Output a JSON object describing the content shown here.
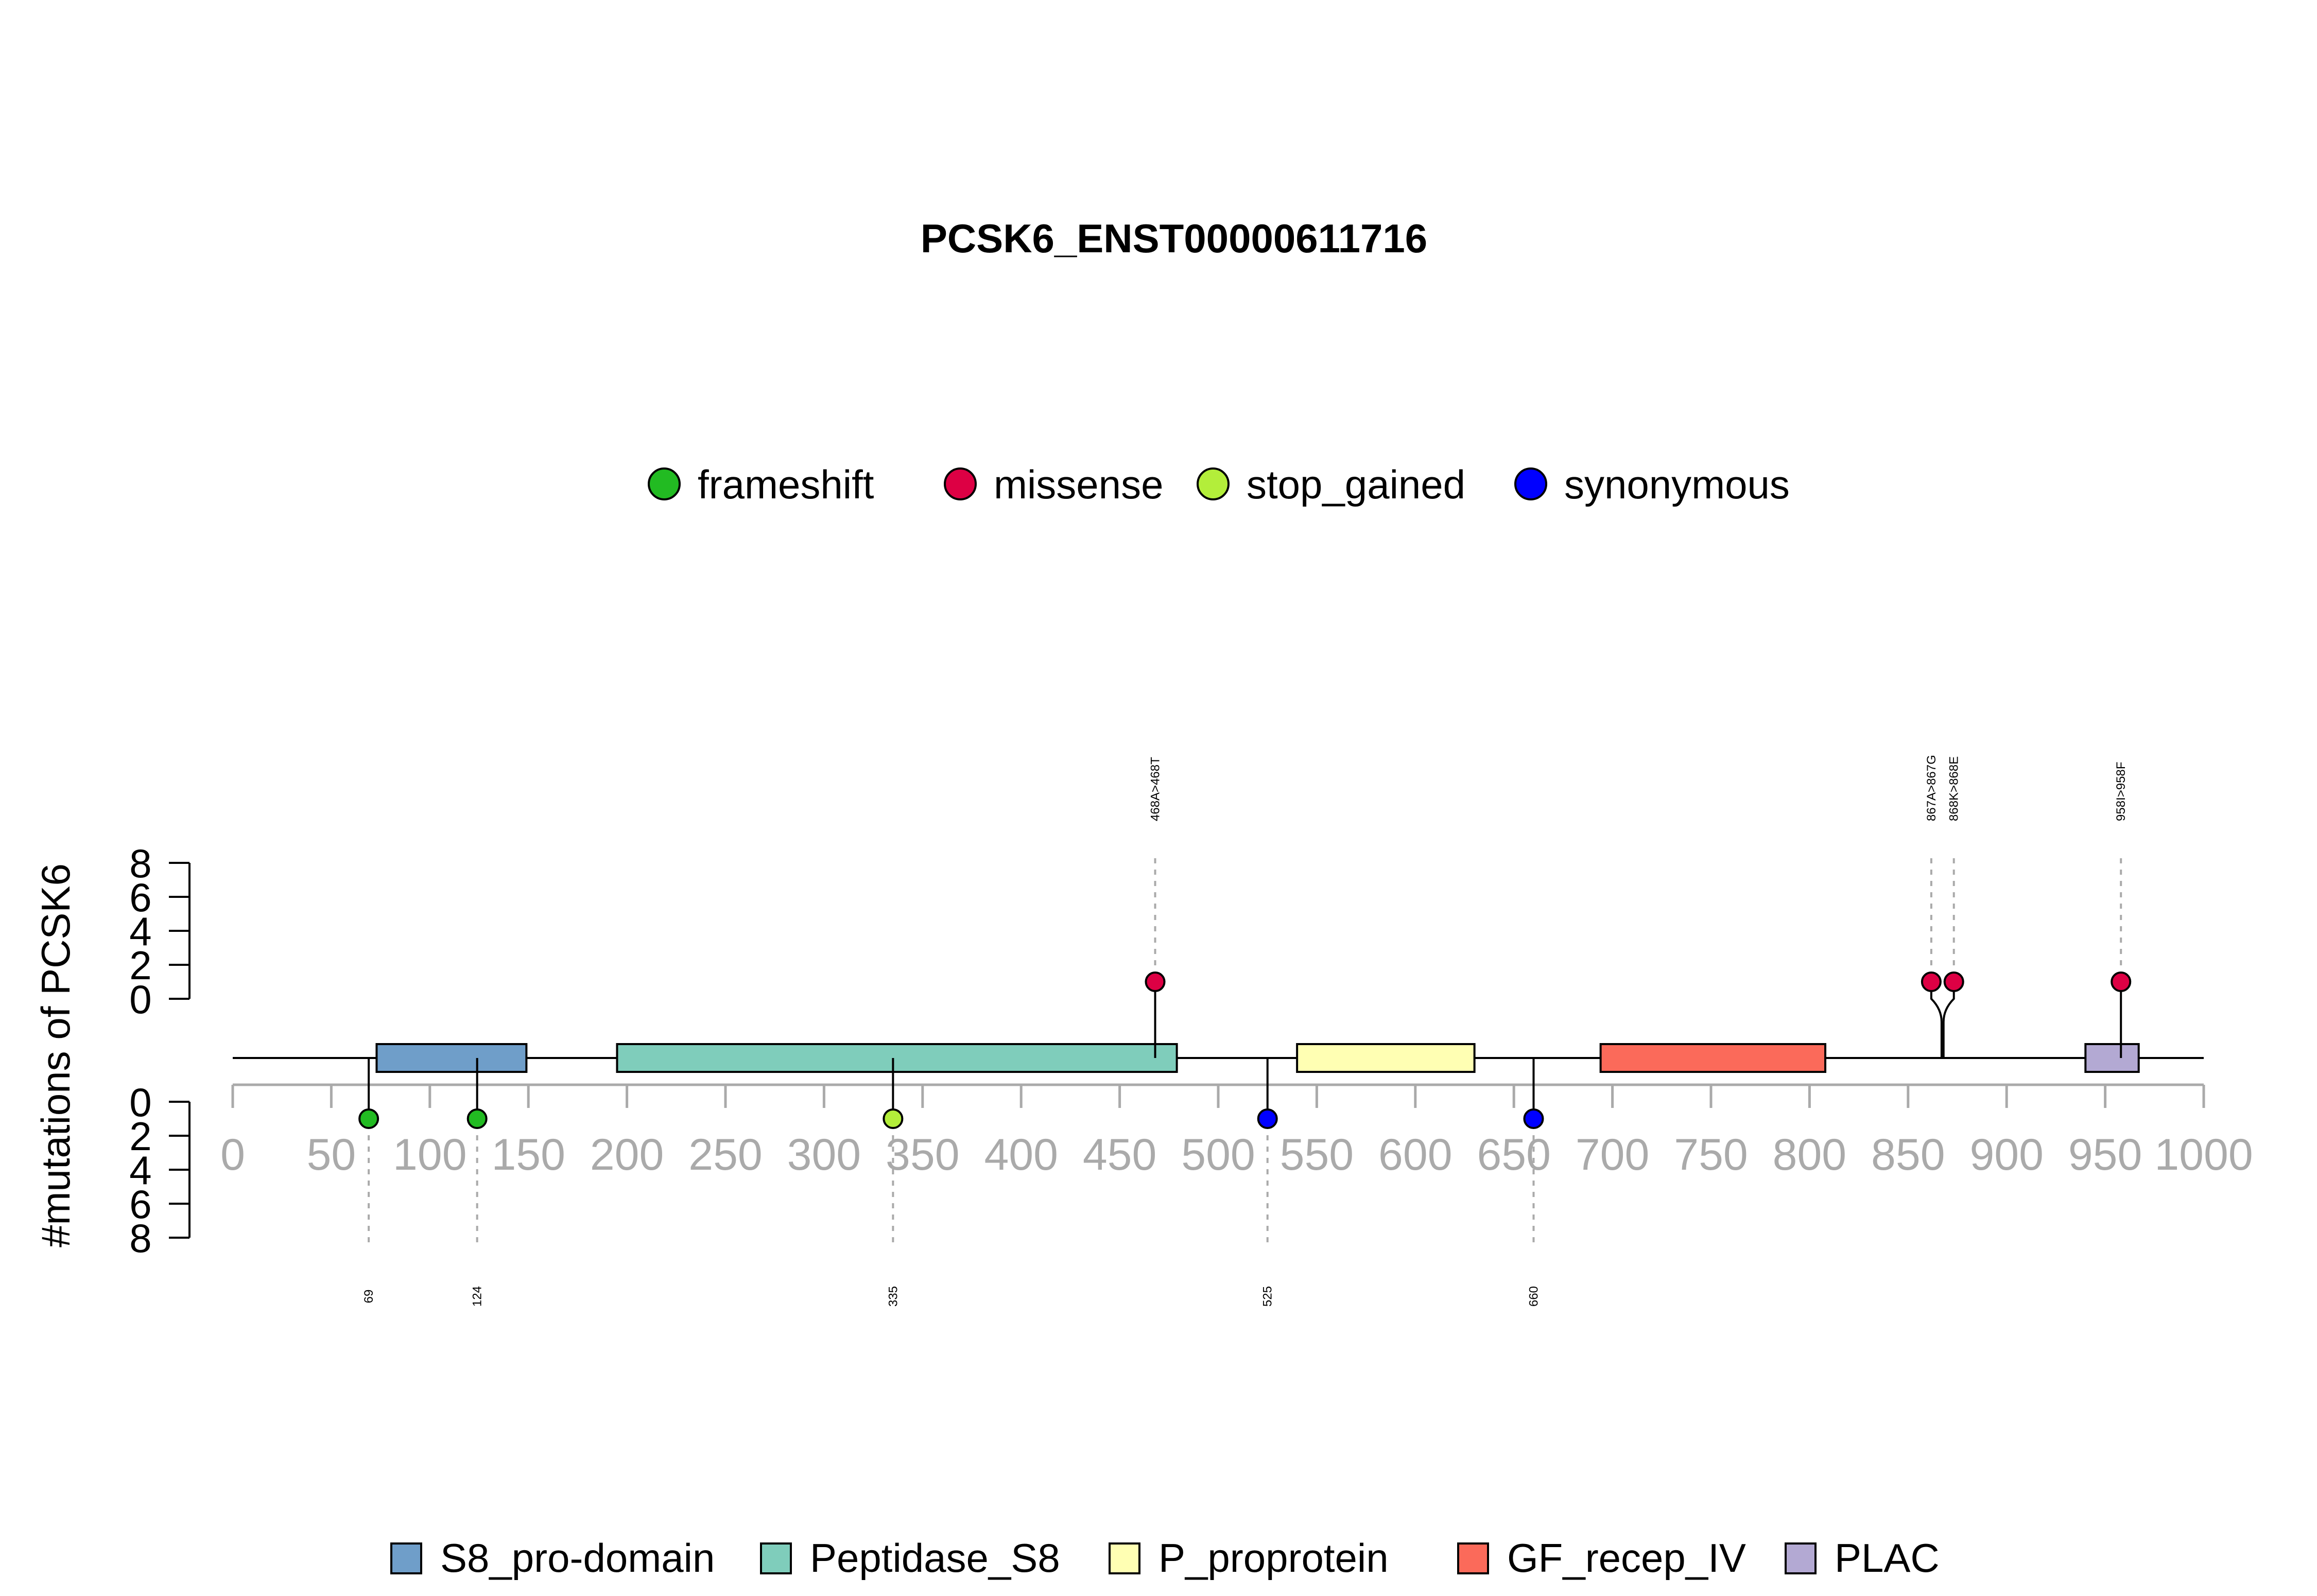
{
  "chart_data": {
    "type": "lollipop",
    "title": "PCSK6_ENST00000611716",
    "ylabel": "#mutations of PCSK6",
    "xlim": [
      0,
      1000
    ],
    "x_ticks": [
      0,
      50,
      100,
      150,
      200,
      250,
      300,
      350,
      400,
      450,
      500,
      550,
      600,
      650,
      700,
      750,
      800,
      850,
      900,
      950,
      1000
    ],
    "y_ticks": [
      0,
      2,
      4,
      6,
      8
    ],
    "ylim": [
      0,
      8
    ],
    "mutation_legend": [
      {
        "name": "frameshift",
        "color": "#22bb22"
      },
      {
        "name": "missense",
        "color": "#dd0044"
      },
      {
        "name": "stop_gained",
        "color": "#b3ee3a"
      },
      {
        "name": "synonymous",
        "color": "#0000ff"
      }
    ],
    "domains": [
      {
        "name": "S8_pro-domain",
        "start": 73,
        "end": 149,
        "color": "#6f9ec9"
      },
      {
        "name": "Peptidase_S8",
        "start": 195,
        "end": 479,
        "color": "#7fcdbb"
      },
      {
        "name": "P_proprotein",
        "start": 540,
        "end": 630,
        "color": "#ffffb3"
      },
      {
        "name": "GF_recep_IV",
        "start": 694,
        "end": 808,
        "color": "#fb6a5a"
      },
      {
        "name": "PLAC",
        "start": 940,
        "end": 967,
        "color": "#b3a9d3"
      }
    ],
    "mutations_above": [
      {
        "label": "468A>468T",
        "position": 468,
        "count": 1,
        "type": "missense"
      },
      {
        "label": "867A>867G",
        "position": 867,
        "count": 1,
        "type": "missense"
      },
      {
        "label": "868K>868E",
        "position": 868,
        "count": 1,
        "type": "missense"
      },
      {
        "label": "958I>958F",
        "position": 958,
        "count": 1,
        "type": "missense"
      }
    ],
    "mutations_below": [
      {
        "label": "69",
        "position": 69,
        "count": 1,
        "type": "frameshift"
      },
      {
        "label": "124",
        "position": 124,
        "count": 1,
        "type": "frameshift"
      },
      {
        "label": "335",
        "position": 335,
        "count": 1,
        "type": "stop_gained"
      },
      {
        "label": "525",
        "position": 525,
        "count": 1,
        "type": "synonymous"
      },
      {
        "label": "660",
        "position": 660,
        "count": 1,
        "type": "synonymous"
      }
    ]
  }
}
